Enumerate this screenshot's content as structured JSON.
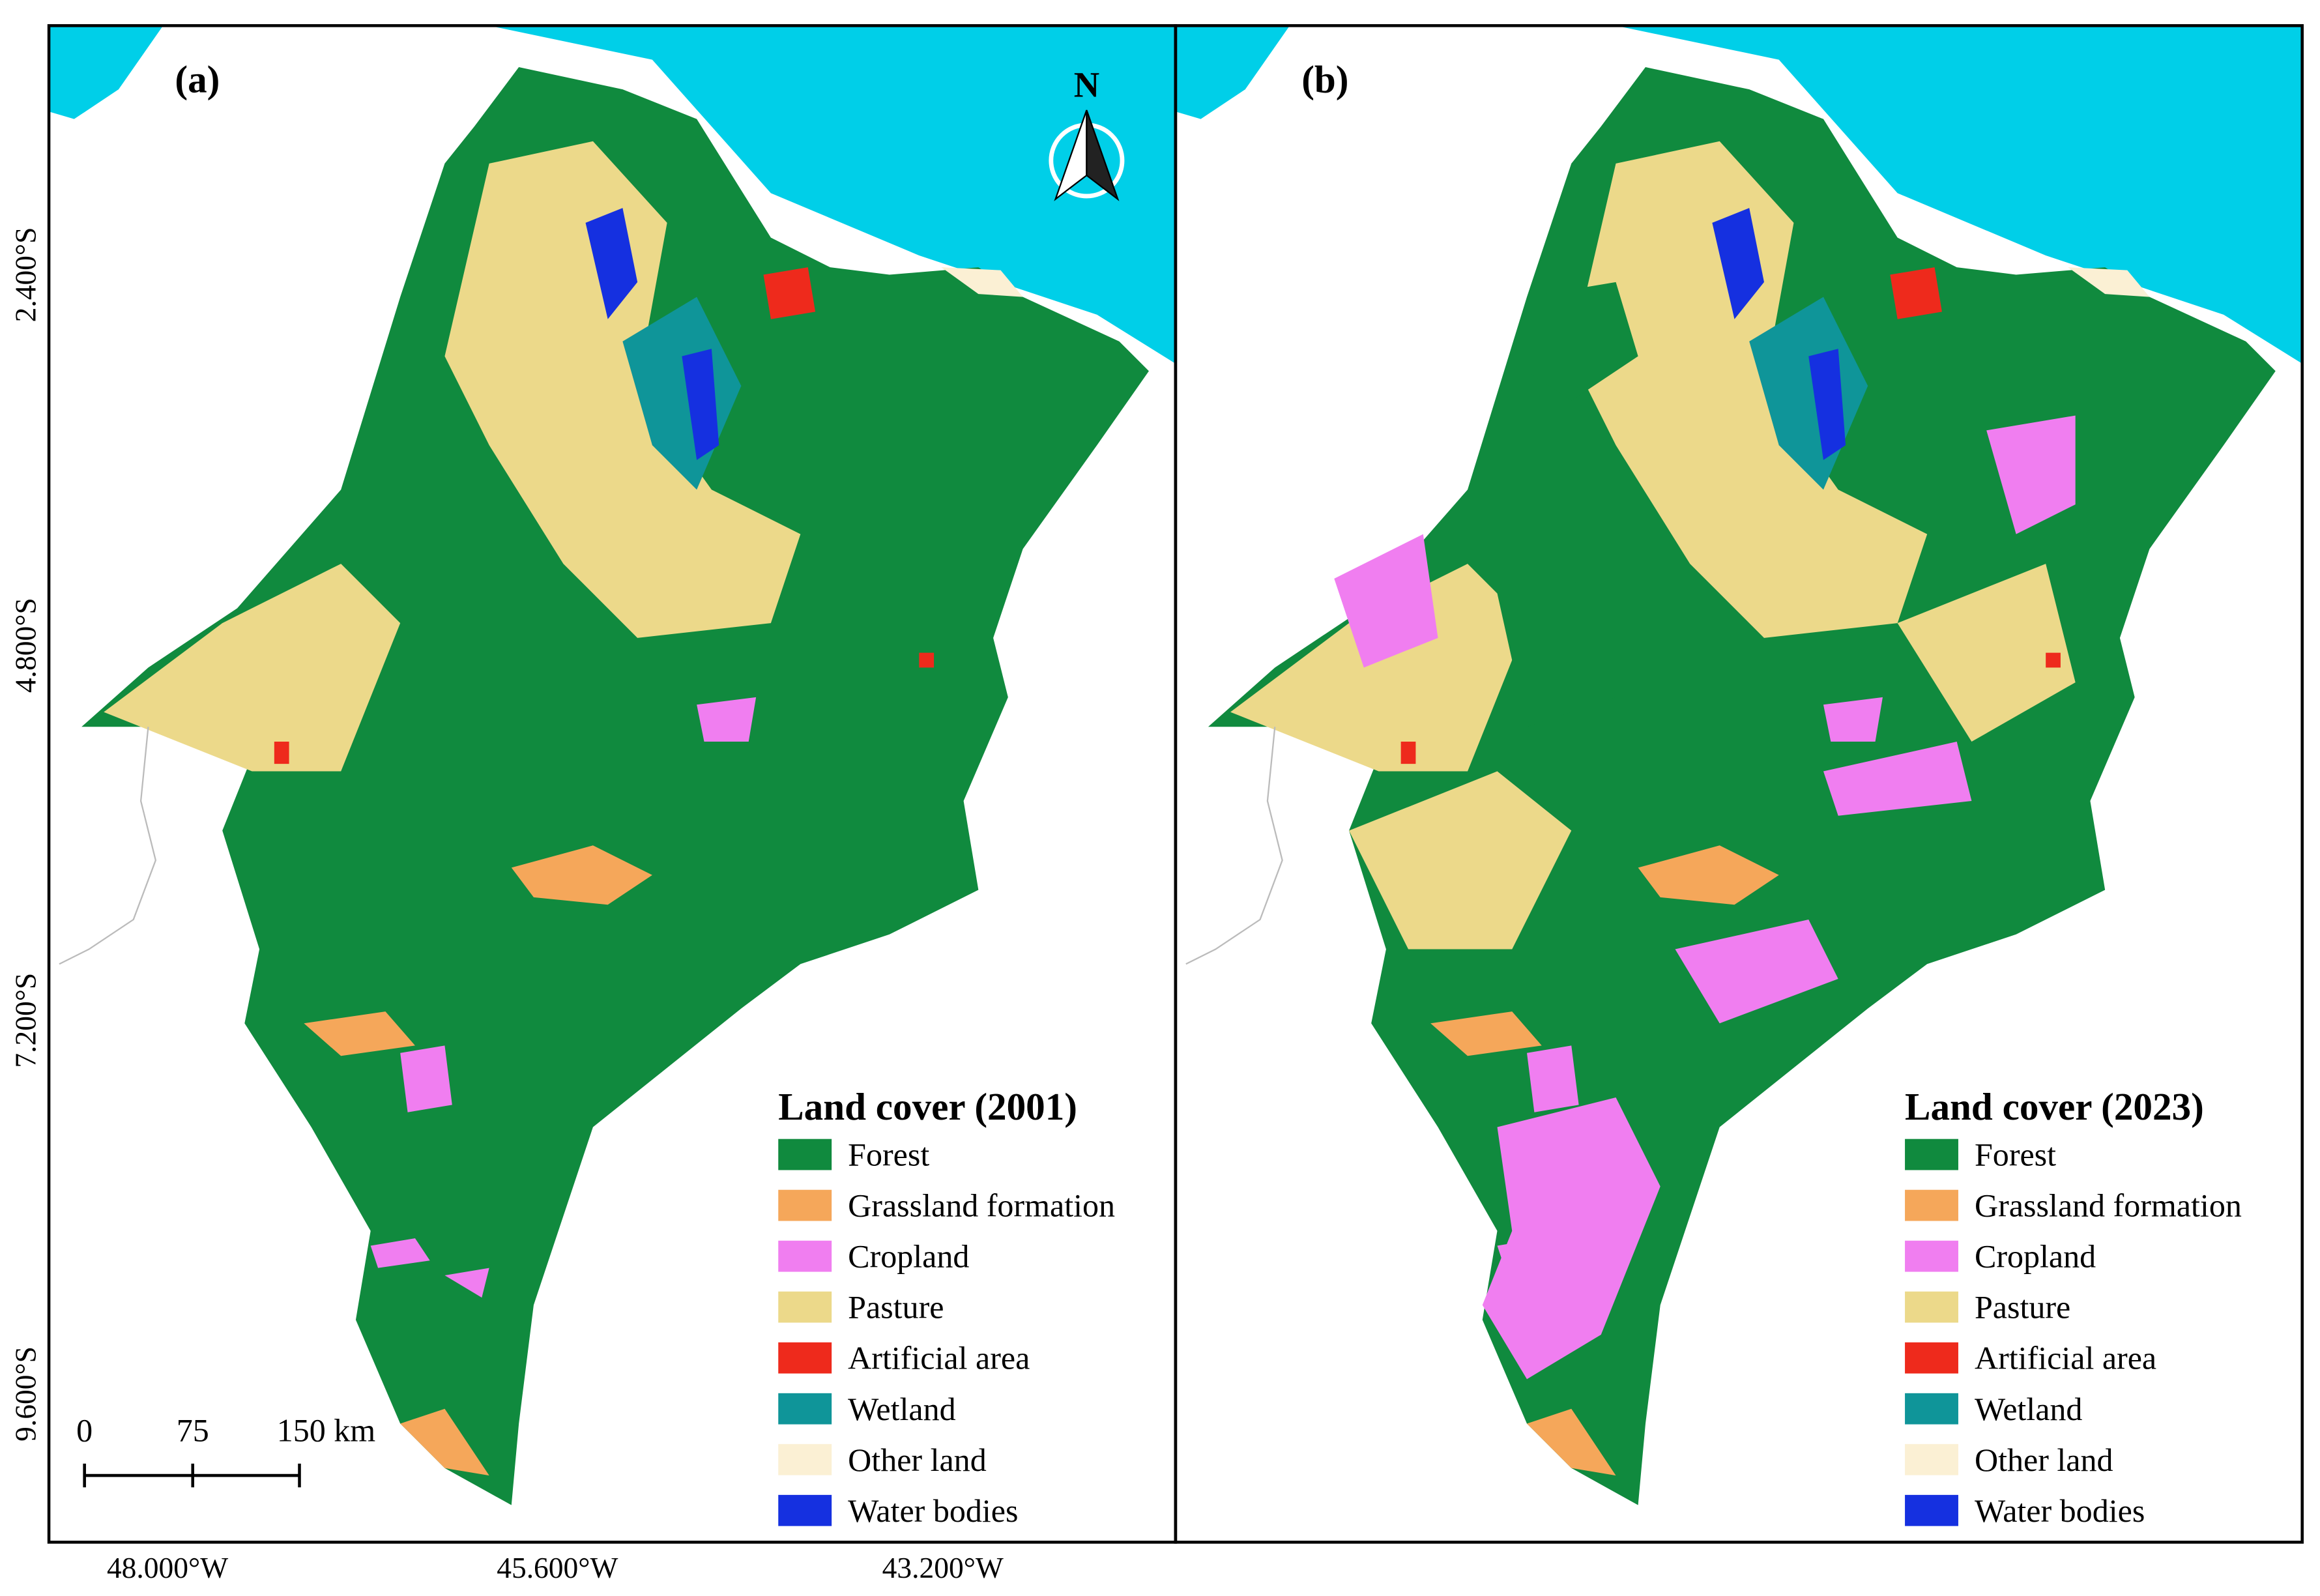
{
  "panels": [
    {
      "label": "(a)",
      "legend": {
        "title": "Land cover (2001)",
        "items": [
          {
            "name": "Forest",
            "color": "#108a3e"
          },
          {
            "name": "Grassland formation",
            "color": "#f5a75a"
          },
          {
            "name": "Cropland",
            "color": "#f07ef0"
          },
          {
            "name": "Pasture",
            "color": "#ecd98a"
          },
          {
            "name": "Artificial area",
            "color": "#ee2a1c"
          },
          {
            "name": "Wetland",
            "color": "#0f9599"
          },
          {
            "name": "Other land",
            "color": "#fbf0d4"
          },
          {
            "name": "Water bodies",
            "color": "#1530e0"
          }
        ]
      }
    },
    {
      "label": "(b)",
      "legend": {
        "title": "Land cover (2023)",
        "items": [
          {
            "name": "Forest",
            "color": "#108a3e"
          },
          {
            "name": "Grassland formation",
            "color": "#f5a75a"
          },
          {
            "name": "Cropland",
            "color": "#f07ef0"
          },
          {
            "name": "Pasture",
            "color": "#ecd98a"
          },
          {
            "name": "Artificial area",
            "color": "#ee2a1c"
          },
          {
            "name": "Wetland",
            "color": "#0f9599"
          },
          {
            "name": "Other land",
            "color": "#fbf0d4"
          },
          {
            "name": "Water bodies",
            "color": "#1530e0"
          }
        ]
      }
    }
  ],
  "north_arrow": "N",
  "latitude_labels": [
    "2.400°S",
    "4.800°S",
    "7.200°S",
    "9.600°S"
  ],
  "longitude_labels": [
    "48.000°W",
    "45.600°W",
    "43.200°W"
  ],
  "scale_bar": {
    "labels": [
      "0",
      "75",
      "150 km"
    ]
  },
  "ocean_color": "#00cfe8"
}
